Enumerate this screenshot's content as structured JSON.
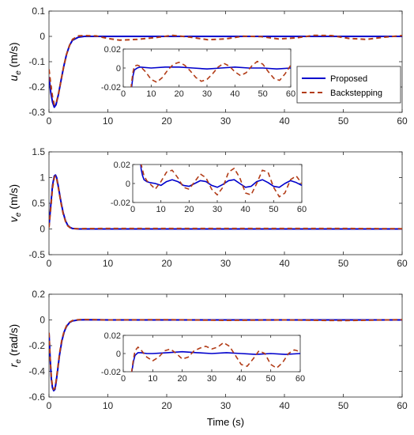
{
  "chart_data": [
    {
      "type": "line",
      "ylabel": "u",
      "ylabel_sub": "e",
      "ylabel_unit": " (m/s)",
      "xlim": [
        0,
        60
      ],
      "ylim": [
        -0.3,
        0.1
      ],
      "xticks": [
        0,
        10,
        20,
        30,
        40,
        50,
        60
      ],
      "yticks": [
        -0.3,
        -0.2,
        -0.1,
        0,
        0.1
      ],
      "series": [
        {
          "name": "Proposed",
          "color": "#0000cc",
          "style": "solid",
          "x": [
            0,
            0.3,
            0.6,
            0.9,
            1.2,
            1.6,
            2.0,
            2.5,
            3,
            3.5,
            4,
            5,
            6,
            10,
            20,
            30,
            40,
            50,
            60
          ],
          "y": [
            -0.16,
            -0.22,
            -0.26,
            -0.28,
            -0.27,
            -0.23,
            -0.18,
            -0.12,
            -0.07,
            -0.035,
            -0.015,
            -0.003,
            0,
            0,
            0,
            0,
            0,
            0,
            0
          ]
        },
        {
          "name": "Backstepping",
          "color": "#b23c17",
          "style": "dashed",
          "x": [
            0,
            0.3,
            0.6,
            0.9,
            1.2,
            1.6,
            2.0,
            2.5,
            3,
            3.5,
            4,
            5,
            6,
            8,
            10,
            12,
            15,
            18,
            21,
            24,
            27,
            30,
            33,
            36,
            39,
            42,
            45,
            48,
            51,
            54,
            57,
            60
          ],
          "y": [
            -0.13,
            -0.19,
            -0.24,
            -0.27,
            -0.265,
            -0.23,
            -0.18,
            -0.12,
            -0.07,
            -0.035,
            -0.012,
            0.002,
            0.003,
            0.002,
            -0.008,
            -0.015,
            -0.012,
            -0.005,
            0.004,
            -0.003,
            -0.013,
            -0.01,
            0.001,
            -0.001,
            -0.01,
            -0.006,
            0.004,
            0.003,
            -0.008,
            -0.012,
            -0.003,
            0.003
          ]
        }
      ],
      "inset": {
        "xlim": [
          0,
          60
        ],
        "ylim": [
          -0.02,
          0.02
        ],
        "xticks": [
          0,
          10,
          20,
          30,
          40,
          50,
          60
        ],
        "yticks": [
          -0.02,
          0,
          0.02
        ],
        "series": [
          {
            "x": [
              2.5,
              3,
              3.5,
              4,
              5,
              6,
              10,
              15,
              20,
              25,
              30,
              35,
              40,
              45,
              50,
              55,
              60
            ],
            "y": [
              -0.03,
              -0.02,
              -0.008,
              -0.002,
              0,
              0.001,
              0,
              0.001,
              0.001,
              0,
              -0.001,
              0,
              0.001,
              0,
              0,
              -0.001,
              0
            ]
          },
          {
            "x": [
              2.5,
              3,
              3.5,
              4,
              5,
              6,
              8,
              10,
              12,
              14,
              16,
              18,
              20,
              22,
              24,
              26,
              28,
              30,
              32,
              34,
              36,
              38,
              40,
              42,
              44,
              46,
              48,
              50,
              52,
              54,
              56,
              58,
              60
            ],
            "y": [
              -0.03,
              -0.015,
              -0.004,
              0.002,
              0.003,
              0.002,
              -0.004,
              -0.012,
              -0.015,
              -0.01,
              -0.002,
              0.004,
              0.006,
              0.003,
              -0.003,
              -0.01,
              -0.014,
              -0.012,
              -0.006,
              0.001,
              0.005,
              0.002,
              -0.004,
              -0.008,
              -0.005,
              0.002,
              0.007,
              0.004,
              -0.004,
              -0.011,
              -0.013,
              -0.006,
              0.003
            ]
          }
        ]
      },
      "legend": {
        "placement": "right",
        "entries": [
          "Proposed",
          "Backstepping"
        ]
      }
    },
    {
      "type": "line",
      "ylabel": "v",
      "ylabel_sub": "e",
      "ylabel_unit": " (m/s)",
      "xlim": [
        0,
        60
      ],
      "ylim": [
        -0.5,
        1.5
      ],
      "xticks": [
        0,
        10,
        20,
        30,
        40,
        50,
        60
      ],
      "yticks": [
        -0.5,
        0,
        0.5,
        1,
        1.5
      ],
      "series": [
        {
          "name": "Proposed",
          "color": "#0000cc",
          "style": "solid",
          "x": [
            0,
            0.3,
            0.6,
            0.9,
            1.1,
            1.3,
            1.6,
            2.0,
            2.4,
            2.8,
            3.2,
            3.6,
            4.0,
            5,
            6,
            10,
            20,
            30,
            40,
            50,
            60
          ],
          "y": [
            0.05,
            0.45,
            0.85,
            1.03,
            1.05,
            1.0,
            0.82,
            0.55,
            0.32,
            0.16,
            0.07,
            0.03,
            0.01,
            0,
            0,
            0,
            0,
            0,
            0,
            0,
            0
          ]
        },
        {
          "name": "Backstepping",
          "color": "#b23c17",
          "style": "dashed",
          "x": [
            0,
            0.3,
            0.6,
            0.9,
            1.1,
            1.3,
            1.6,
            2.0,
            2.4,
            2.8,
            3.2,
            3.6,
            4.0,
            5,
            6,
            10,
            20,
            30,
            40,
            50,
            60
          ],
          "y": [
            0.03,
            0.4,
            0.8,
            1.0,
            1.03,
            0.98,
            0.8,
            0.53,
            0.3,
            0.15,
            0.06,
            0.025,
            0.008,
            0.005,
            0.008,
            0.01,
            0.01,
            0.01,
            0.01,
            0.01,
            0.005
          ]
        }
      ],
      "inset": {
        "xlim": [
          0,
          60
        ],
        "ylim": [
          -0.02,
          0.02
        ],
        "xticks": [
          0,
          10,
          20,
          30,
          40,
          50,
          60
        ],
        "yticks": [
          -0.02,
          0,
          0.02
        ],
        "series": [
          {
            "x": [
              2.5,
              3,
              3.5,
              4,
              5,
              6,
              8,
              10,
              12,
              14,
              16,
              18,
              20,
              22,
              24,
              26,
              28,
              30,
              32,
              34,
              36,
              38,
              40,
              42,
              44,
              46,
              48,
              50,
              52,
              54,
              56,
              58,
              60
            ],
            "y": [
              0.03,
              0.015,
              0.008,
              0.004,
              0.002,
              0.001,
              0.0,
              -0.002,
              0.002,
              0.004,
              0.002,
              -0.002,
              -0.003,
              0.0,
              0.003,
              0.002,
              -0.002,
              -0.004,
              -0.001,
              0.003,
              0.004,
              0.0,
              -0.004,
              -0.003,
              0.002,
              0.004,
              0.001,
              -0.003,
              -0.004,
              0.0,
              0.003,
              0.001,
              -0.002
            ]
          },
          {
            "x": [
              2.5,
              3,
              3.5,
              4,
              5,
              6,
              8,
              10,
              12,
              14,
              16,
              18,
              20,
              22,
              24,
              26,
              28,
              30,
              32,
              34,
              36,
              38,
              40,
              42,
              44,
              46,
              48,
              50,
              52,
              54,
              56,
              58,
              60
            ],
            "y": [
              0.03,
              0.02,
              0.014,
              0.008,
              0.003,
              0.0,
              -0.006,
              0.002,
              0.012,
              0.014,
              0.006,
              -0.004,
              -0.006,
              0.002,
              0.01,
              0.006,
              -0.006,
              -0.012,
              -0.004,
              0.012,
              0.016,
              0.006,
              -0.01,
              -0.012,
              0.0,
              0.014,
              0.012,
              -0.004,
              -0.014,
              -0.01,
              0.004,
              0.008,
              0.0
            ]
          }
        ]
      }
    },
    {
      "type": "line",
      "ylabel": "r",
      "ylabel_sub": "e",
      "ylabel_unit": " (rad/s)",
      "xlabel": "Time (s)",
      "xlim": [
        0,
        60
      ],
      "ylim": [
        -0.6,
        0.2
      ],
      "xticks": [
        0,
        10,
        20,
        30,
        40,
        50,
        60
      ],
      "yticks": [
        -0.6,
        -0.4,
        -0.2,
        0,
        0.2
      ],
      "series": [
        {
          "name": "Proposed",
          "color": "#0000cc",
          "style": "solid",
          "x": [
            0,
            0.2,
            0.4,
            0.6,
            0.8,
            1.0,
            1.2,
            1.5,
            1.8,
            2.2,
            2.6,
            3.0,
            3.5,
            4,
            5,
            6,
            10,
            20,
            30,
            40,
            50,
            60
          ],
          "y": [
            -0.1,
            -0.3,
            -0.46,
            -0.53,
            -0.55,
            -0.54,
            -0.49,
            -0.38,
            -0.27,
            -0.16,
            -0.09,
            -0.05,
            -0.02,
            -0.008,
            0,
            0.002,
            0,
            0,
            0,
            0,
            0,
            0
          ]
        },
        {
          "name": "Backstepping",
          "color": "#b23c17",
          "style": "dashed",
          "x": [
            0,
            0.2,
            0.4,
            0.6,
            0.8,
            1.0,
            1.2,
            1.5,
            1.8,
            2.2,
            2.6,
            3.0,
            3.5,
            4,
            5,
            6,
            10,
            20,
            30,
            40,
            50,
            60
          ],
          "y": [
            -0.1,
            -0.3,
            -0.45,
            -0.52,
            -0.54,
            -0.53,
            -0.48,
            -0.37,
            -0.26,
            -0.15,
            -0.085,
            -0.045,
            -0.018,
            -0.005,
            0.002,
            0.003,
            0.0,
            0.002,
            -0.003,
            0.0,
            -0.005,
            0.002
          ]
        }
      ],
      "inset": {
        "xlim": [
          0,
          60
        ],
        "ylim": [
          -0.02,
          0.02
        ],
        "xticks": [
          0,
          10,
          20,
          30,
          40,
          50,
          60
        ],
        "yticks": [
          -0.02,
          0,
          0.02
        ],
        "series": [
          {
            "x": [
              2.5,
              3,
              3.5,
              4,
              5,
              6,
              8,
              10,
              15,
              20,
              25,
              30,
              35,
              40,
              45,
              50,
              55,
              60
            ],
            "y": [
              -0.03,
              -0.018,
              -0.008,
              -0.002,
              0.001,
              0.001,
              0.0,
              0.0,
              0.001,
              0.002,
              0.001,
              0.0,
              0.001,
              0.0,
              -0.001,
              0.0,
              -0.001,
              0.0
            ]
          },
          {
            "x": [
              2.5,
              3,
              3.5,
              4,
              5,
              6,
              8,
              10,
              12,
              14,
              16,
              18,
              20,
              22,
              24,
              26,
              28,
              30,
              32,
              34,
              36,
              38,
              40,
              42,
              44,
              46,
              48,
              50,
              52,
              54,
              56,
              58,
              60
            ],
            "y": [
              -0.03,
              -0.016,
              -0.005,
              0.003,
              0.007,
              0.004,
              -0.004,
              -0.008,
              -0.004,
              0.003,
              0.005,
              0.0,
              -0.006,
              -0.004,
              0.003,
              0.006,
              0.008,
              0.005,
              0.007,
              0.012,
              0.008,
              -0.002,
              -0.012,
              -0.014,
              -0.006,
              0.003,
              0.0,
              -0.012,
              -0.016,
              -0.01,
              0.0,
              0.004,
              0.002
            ]
          }
        ]
      }
    }
  ]
}
